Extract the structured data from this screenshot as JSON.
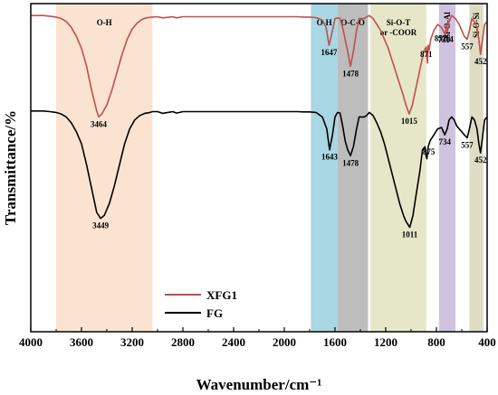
{
  "chart_data": {
    "type": "line",
    "xlabel": "Wavenumber/cm⁻¹",
    "ylabel": "Transmittance/%",
    "xlim": [
      4000,
      400
    ],
    "x_reversed": true,
    "x_ticks": [
      "4000",
      "3600",
      "3200",
      "2800",
      "2400",
      "2000",
      "1600",
      "1200",
      "800",
      "400"
    ],
    "grid": false,
    "legend_position": "bottom-left",
    "bands": [
      {
        "label": "O-H",
        "from": 3800,
        "to": 3040,
        "color": "#fbe3d1"
      },
      {
        "label": "O-H",
        "from": 1790,
        "to": 1580,
        "color": "#a9d7e3"
      },
      {
        "label": "O-C-O",
        "from": 1580,
        "to": 1340,
        "color": "#bdbdbd"
      },
      {
        "label": "Si-O-T\nor -COOR",
        "from": 1320,
        "to": 880,
        "color": "#e6e6c8"
      },
      {
        "label": "Si-O-Al",
        "from": 780,
        "to": 650,
        "color": "#cfc3df"
      },
      {
        "label": "Si-O-Si",
        "from": 540,
        "to": 430,
        "color": "#dedcc3"
      }
    ],
    "series": [
      {
        "name": "XFG1",
        "color": "#c0504d",
        "x": [
          4000,
          3950,
          3900,
          3850,
          3800,
          3760,
          3720,
          3680,
          3640,
          3600,
          3560,
          3520,
          3480,
          3464,
          3440,
          3400,
          3360,
          3320,
          3280,
          3240,
          3200,
          3160,
          3120,
          3080,
          3040,
          3000,
          2960,
          2920,
          2880,
          2850,
          2800,
          2600,
          2400,
          2200,
          2000,
          1900,
          1850,
          1800,
          1750,
          1700,
          1670,
          1647,
          1625,
          1600,
          1580,
          1560,
          1540,
          1520,
          1500,
          1478,
          1455,
          1430,
          1410,
          1390,
          1370,
          1350,
          1330,
          1300,
          1270,
          1240,
          1210,
          1180,
          1150,
          1120,
          1090,
          1060,
          1040,
          1015,
          990,
          960,
          930,
          900,
          880,
          871,
          865,
          857,
          845,
          820,
          790,
          760,
          730,
          722,
          714,
          700,
          680,
          650,
          620,
          600,
          580,
          557,
          540,
          520,
          500,
          480,
          465,
          452,
          440,
          420,
          400
        ],
        "y": [
          100,
          100,
          100,
          99.8,
          99.5,
          99,
          98,
          96,
          93,
          89,
          83,
          75,
          68,
          66,
          67,
          70,
          75,
          81,
          87,
          92,
          95.5,
          97.5,
          98.8,
          99.3,
          99.5,
          99.6,
          99.2,
          99.4,
          99.6,
          99.2,
          99.6,
          99.6,
          99.6,
          99.6,
          99.6,
          99.6,
          99.5,
          99.5,
          99.3,
          98.5,
          96,
          90,
          94,
          99,
          99.2,
          99,
          96,
          92,
          88,
          83,
          88,
          95,
          99,
          99,
          99,
          99.5,
          100,
          99,
          97,
          95,
          92,
          89,
          85,
          81,
          77,
          73,
          70,
          67,
          70,
          76,
          82,
          88,
          89.5,
          84,
          90,
          88.5,
          92,
          95,
          97,
          96,
          93.5,
          97,
          94.5,
          98,
          100,
          99,
          97,
          95,
          93,
          92,
          95,
          99,
          98,
          96,
          92,
          87,
          91,
          97,
          98
        ]
      },
      {
        "name": "FG",
        "color": "#000000",
        "x": [
          4000,
          3950,
          3900,
          3850,
          3800,
          3760,
          3720,
          3680,
          3640,
          3600,
          3560,
          3520,
          3480,
          3449,
          3420,
          3380,
          3340,
          3300,
          3260,
          3220,
          3180,
          3140,
          3100,
          3060,
          3040,
          3000,
          2960,
          2920,
          2880,
          2850,
          2800,
          2600,
          2400,
          2200,
          2000,
          1900,
          1850,
          1800,
          1750,
          1700,
          1665,
          1643,
          1620,
          1600,
          1580,
          1560,
          1540,
          1520,
          1500,
          1478,
          1455,
          1430,
          1410,
          1390,
          1370,
          1350,
          1330,
          1300,
          1270,
          1240,
          1210,
          1180,
          1150,
          1120,
          1090,
          1060,
          1040,
          1011,
          985,
          960,
          930,
          910,
          890,
          882,
          875,
          865,
          850,
          820,
          790,
          760,
          734,
          715,
          700,
          680,
          660,
          640,
          620,
          600,
          580,
          557,
          540,
          520,
          500,
          480,
          465,
          452,
          440,
          420,
          400
        ],
        "y": [
          68,
          68,
          68,
          67.8,
          67.5,
          67,
          66,
          64,
          61,
          57,
          50,
          42,
          34,
          32,
          33,
          37,
          43,
          50,
          57,
          62,
          65,
          66.5,
          67.2,
          67.5,
          67.8,
          67.8,
          67.2,
          67.5,
          67.8,
          67.3,
          67.8,
          67.8,
          67.8,
          67.8,
          67.8,
          67.8,
          67.7,
          67.7,
          67.5,
          66,
          62,
          55,
          60,
          66,
          67.5,
          67.3,
          63,
          58,
          55,
          53,
          56,
          62,
          66,
          66,
          66,
          66.5,
          67.5,
          66.5,
          64,
          61,
          57,
          52,
          47,
          42,
          37,
          33,
          31,
          29,
          33,
          40,
          48,
          55,
          56,
          53,
          52,
          56,
          58,
          60,
          62,
          62.5,
          60,
          62,
          65,
          66,
          65,
          63,
          62,
          61,
          60,
          59,
          62,
          66,
          65,
          62,
          57,
          54,
          58,
          65,
          66
        ]
      }
    ],
    "peak_labels": [
      {
        "text": "3464",
        "x": 3464,
        "series": "XFG1",
        "pos": "below"
      },
      {
        "text": "1647",
        "x": 1647,
        "series": "XFG1",
        "pos": "below"
      },
      {
        "text": "1478",
        "x": 1478,
        "series": "XFG1",
        "pos": "below"
      },
      {
        "text": "871",
        "x": 880,
        "series": "XFG1",
        "pos": "below"
      },
      {
        "text": "857",
        "x": 845,
        "series": "XFG1",
        "pos": "right"
      },
      {
        "text": "730",
        "x": 740,
        "series": "XFG1",
        "pos": "below"
      },
      {
        "text": "714",
        "x": 714,
        "series": "XFG1",
        "pos": "below"
      },
      {
        "text": "557",
        "x": 557,
        "series": "XFG1",
        "pos": "below"
      },
      {
        "text": "452",
        "x": 452,
        "series": "XFG1",
        "pos": "below"
      },
      {
        "text": "3449",
        "x": 3449,
        "series": "FG",
        "pos": "below"
      },
      {
        "text": "1643",
        "x": 1643,
        "series": "FG",
        "pos": "below"
      },
      {
        "text": "1478",
        "x": 1478,
        "series": "FG",
        "pos": "below"
      },
      {
        "text": "1015",
        "x": 1015,
        "series": "XFG1",
        "pos": "below"
      },
      {
        "text": "875",
        "x": 860,
        "series": "FG",
        "pos": "below"
      },
      {
        "text": "734",
        "x": 734,
        "series": "FG",
        "pos": "below"
      },
      {
        "text": "557",
        "x": 557,
        "series": "FG",
        "pos": "below"
      },
      {
        "text": "452",
        "x": 452,
        "series": "FG",
        "pos": "below"
      },
      {
        "text": "1011",
        "x": 1011,
        "series": "FG",
        "pos": "below"
      }
    ],
    "ylim": [
      -6,
      104
    ]
  }
}
